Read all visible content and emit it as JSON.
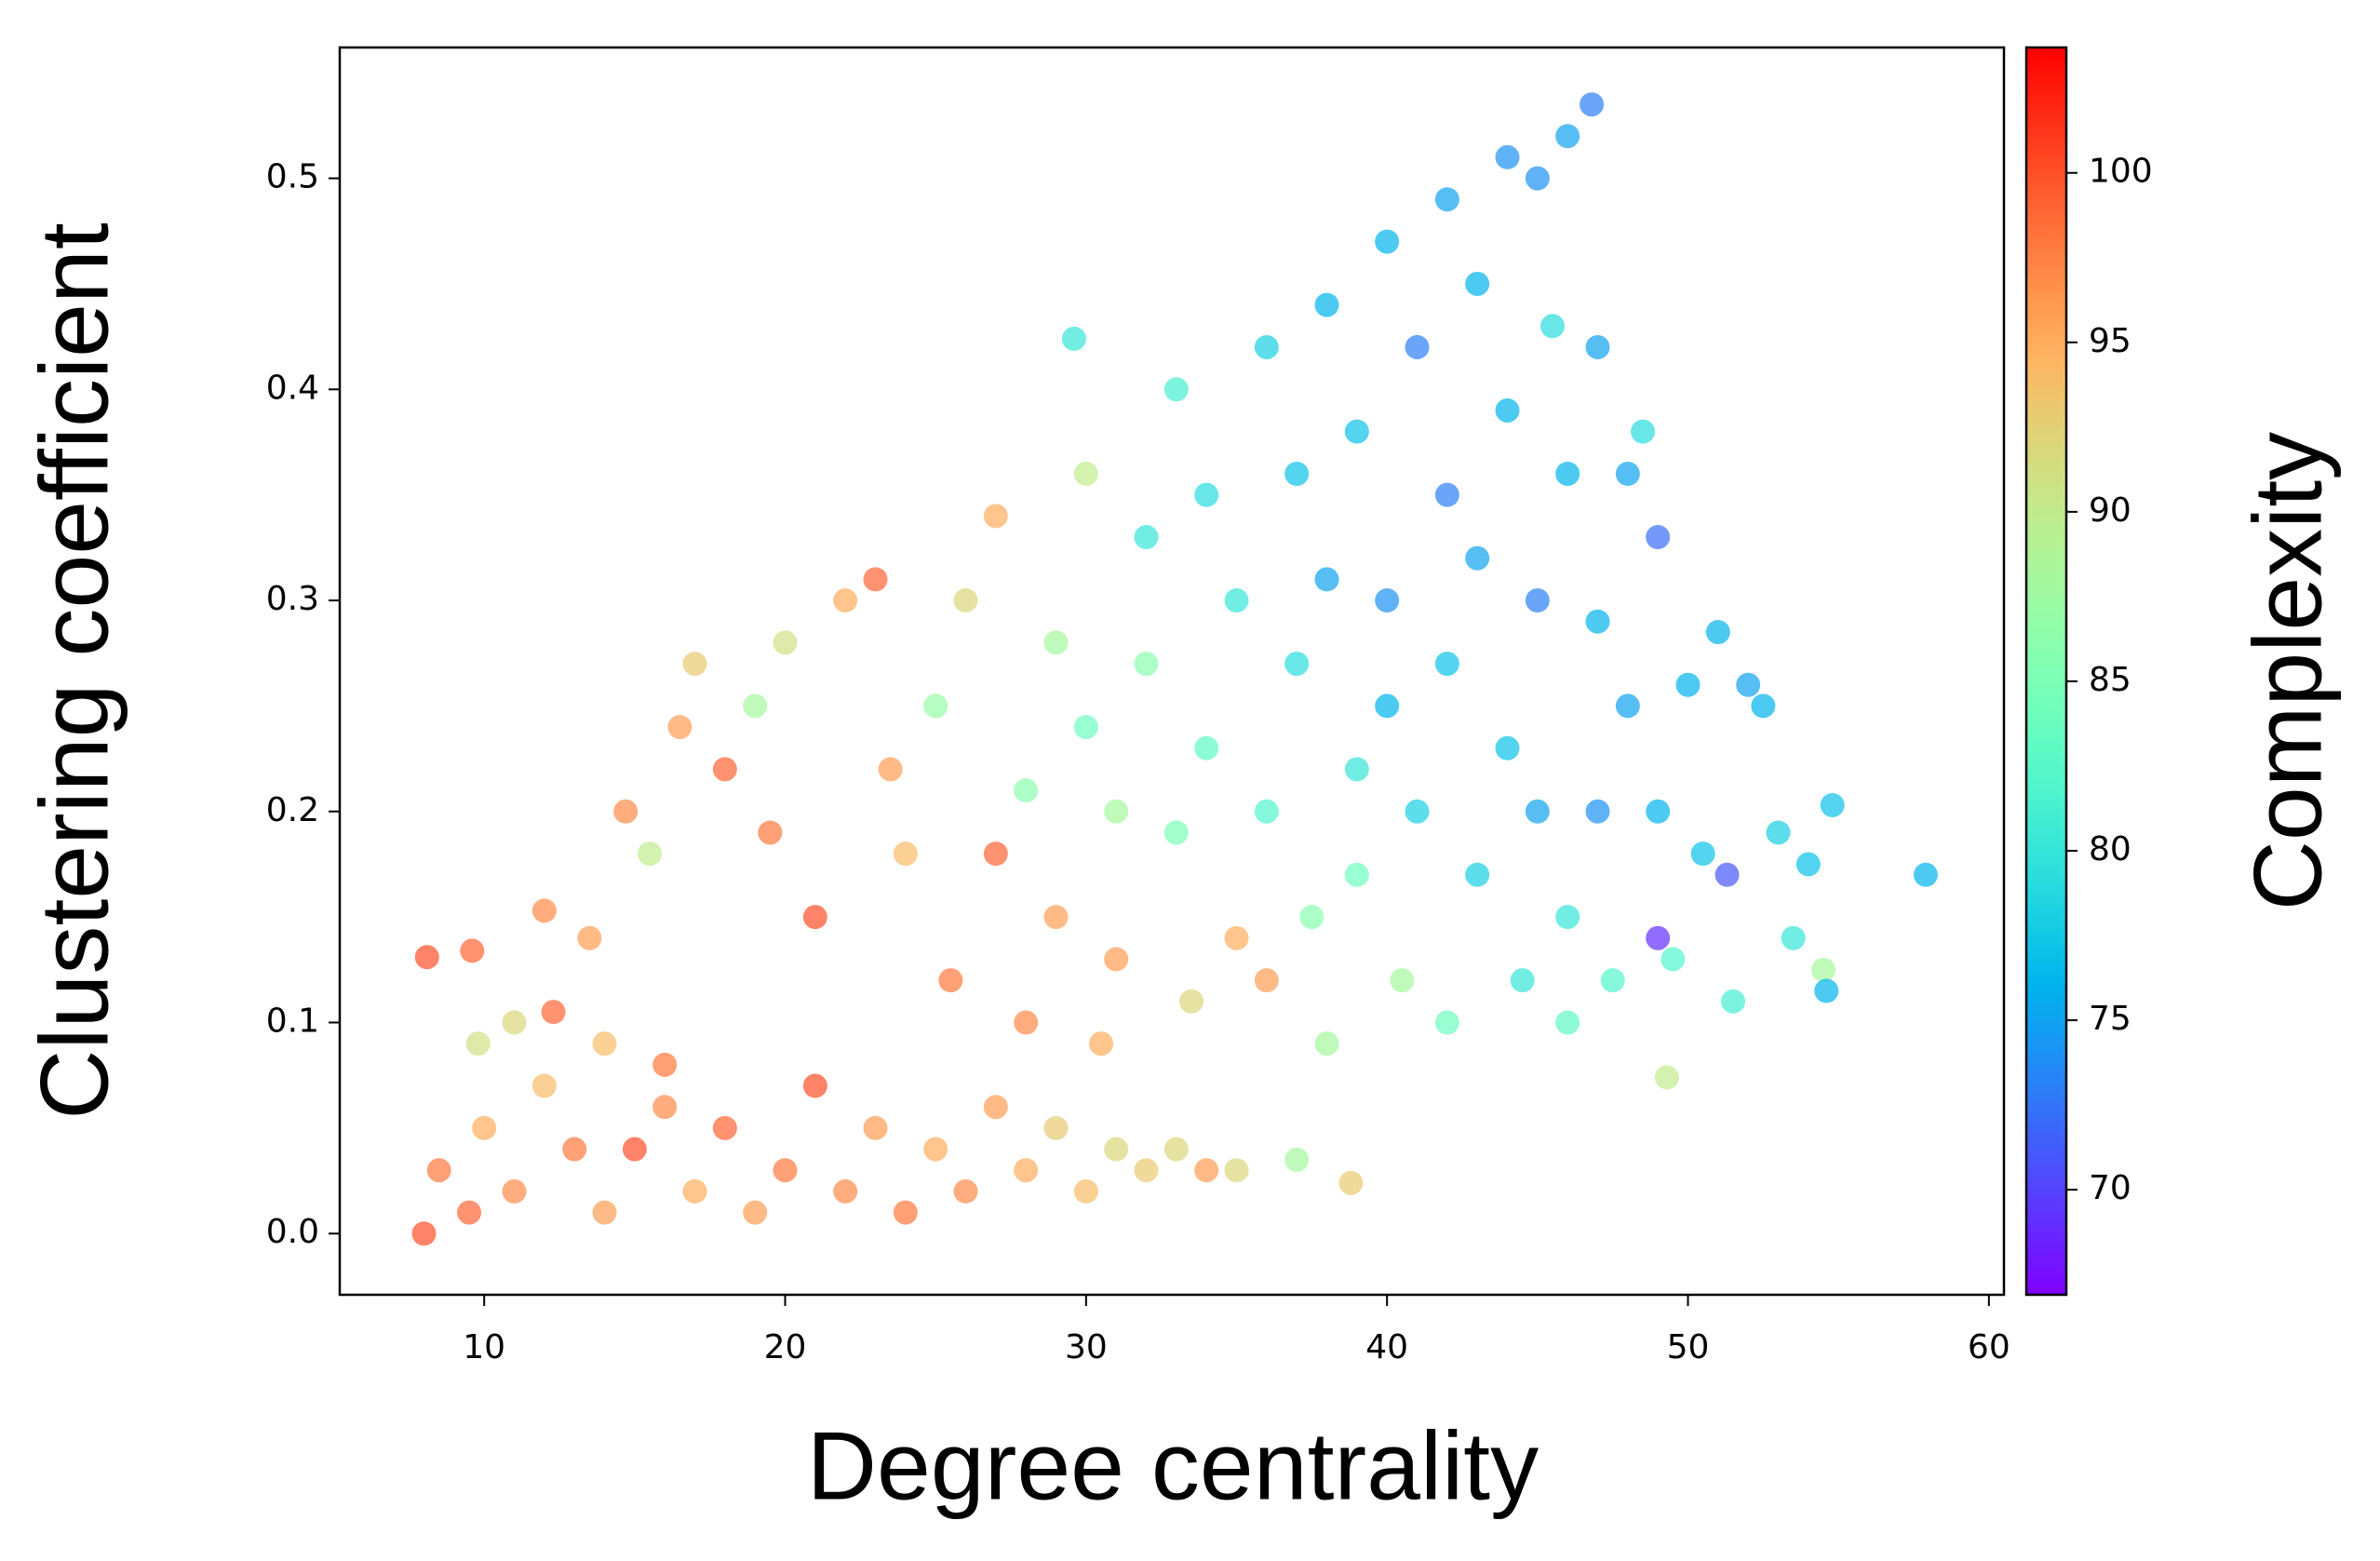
{
  "chart_data": {
    "type": "scatter",
    "xlabel": "Degree centrality",
    "ylabel": "Clustering coefficient",
    "colorbar_label": "Complexity",
    "colormap": "rainbow",
    "alpha": 0.7,
    "xlim": [
      5.2,
      60.5
    ],
    "ylim": [
      -0.029,
      0.562
    ],
    "clim": [
      66.9,
      103.7
    ],
    "xticks": [
      10,
      20,
      30,
      40,
      50,
      60
    ],
    "yticks": [
      {
        "value": 0,
        "label": "0.0"
      },
      0.1,
      0.2,
      0.3,
      0.4,
      0.5
    ],
    "cticks": [
      70,
      75,
      80,
      85,
      90,
      95,
      100
    ],
    "x": [
      8,
      9.5,
      8.5,
      10,
      11,
      12,
      13,
      14,
      15,
      16,
      17,
      18,
      19,
      20,
      21,
      22,
      23,
      24,
      25,
      26,
      27,
      28,
      29,
      30,
      31,
      32,
      33,
      34,
      35,
      37,
      38.8,
      9.8,
      11,
      12.3,
      14,
      16,
      8.1,
      9.6,
      12,
      13.5,
      14.7,
      15.5,
      16.5,
      17,
      18,
      19,
      19.5,
      20,
      21,
      22,
      23,
      23.5,
      24,
      25,
      25.5,
      26,
      27,
      27,
      28,
      28,
      29,
      29,
      30,
      30,
      30.5,
      31,
      31,
      32,
      32,
      33,
      33,
      33.5,
      34,
      34,
      35,
      35,
      36,
      36,
      36,
      37,
      37,
      37.5,
      38,
      38,
      38,
      39,
      39,
      39,
      40,
      40,
      40,
      40.5,
      41,
      41,
      42,
      42,
      42,
      42,
      43,
      43,
      43,
      44,
      44,
      44,
      44.5,
      45,
      45,
      45,
      45.5,
      46,
      46,
      46,
      46,
      46.8,
      47,
      47,
      47,
      47.5,
      48,
      48,
      48.5,
      49,
      49,
      49.3,
      49.5,
      50,
      50.5,
      51,
      51.5,
      52,
      52.5,
      53,
      53.5,
      54,
      54.5,
      54.8,
      54.6,
      57.9,
      29.6,
      51.3,
      49
    ],
    "y": [
      0,
      0.01,
      0.03,
      0.05,
      0.02,
      0.07,
      0.04,
      0.01,
      0.04,
      0.06,
      0.02,
      0.05,
      0.01,
      0.03,
      0.07,
      0.02,
      0.05,
      0.01,
      0.04,
      0.02,
      0.06,
      0.03,
      0.05,
      0.02,
      0.04,
      0.03,
      0.04,
      0.03,
      0.03,
      0.035,
      0.024,
      0.09,
      0.1,
      0.105,
      0.09,
      0.08,
      0.131,
      0.134,
      0.153,
      0.14,
      0.2,
      0.18,
      0.24,
      0.27,
      0.22,
      0.25,
      0.19,
      0.28,
      0.15,
      0.3,
      0.31,
      0.22,
      0.18,
      0.25,
      0.12,
      0.3,
      0.34,
      0.18,
      0.21,
      0.1,
      0.28,
      0.15,
      0.36,
      0.24,
      0.09,
      0.2,
      0.13,
      0.33,
      0.27,
      0.4,
      0.19,
      0.11,
      0.35,
      0.23,
      0.14,
      0.3,
      0.42,
      0.2,
      0.12,
      0.36,
      0.27,
      0.15,
      0.44,
      0.31,
      0.09,
      0.22,
      0.17,
      0.38,
      0.47,
      0.3,
      0.25,
      0.12,
      0.42,
      0.2,
      0.49,
      0.35,
      0.27,
      0.1,
      0.45,
      0.32,
      0.17,
      0.51,
      0.39,
      0.23,
      0.12,
      0.5,
      0.3,
      0.2,
      0.43,
      0.52,
      0.36,
      0.15,
      0.1,
      0.535,
      0.42,
      0.29,
      0.2,
      0.12,
      0.36,
      0.25,
      0.38,
      0.33,
      0.2,
      0.074,
      0.13,
      0.26,
      0.18,
      0.285,
      0.11,
      0.26,
      0.25,
      0.19,
      0.14,
      0.175,
      0.125,
      0.203,
      0.115,
      0.17,
      0.424,
      0.17,
      0.14
    ],
    "color_values": [
      100,
      99,
      98,
      95,
      97,
      94,
      98,
      96,
      100,
      97,
      95,
      99,
      96,
      98,
      100,
      97,
      96,
      98,
      95,
      97,
      96,
      95,
      93,
      94,
      92,
      93,
      92,
      96,
      92,
      88,
      93,
      91,
      92,
      99,
      94,
      98,
      100,
      99,
      97,
      96,
      97,
      90,
      96,
      93,
      99,
      88,
      98,
      91,
      100,
      95,
      99,
      96,
      94,
      87,
      98,
      92,
      95,
      99,
      86,
      97,
      88,
      96,
      90,
      84,
      95,
      88,
      96,
      80,
      86,
      81,
      85,
      92,
      79,
      83,
      95,
      80,
      78,
      82,
      96,
      77,
      79,
      86,
      76,
      75,
      88,
      80,
      84,
      77,
      76,
      74,
      76,
      88,
      73,
      78,
      75,
      73,
      77,
      84,
      76,
      75,
      78,
      74,
      76,
      77,
      80,
      74,
      73,
      75,
      79,
      75,
      76,
      80,
      83,
      73,
      75,
      76,
      74,
      82,
      75,
      75,
      79,
      72,
      76,
      90,
      82,
      76,
      77,
      76,
      81,
      75,
      76,
      78,
      80,
      77,
      88,
      77,
      76,
      76,
      80,
      71,
      69
    ]
  }
}
